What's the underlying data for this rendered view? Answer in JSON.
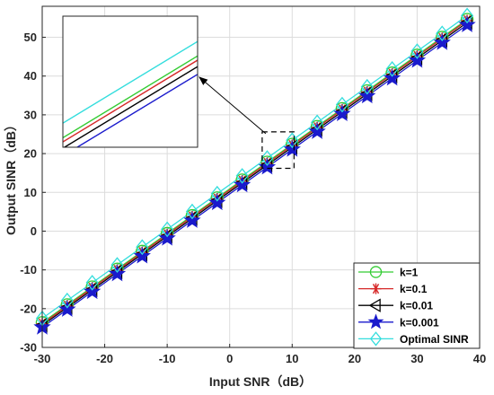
{
  "chart_data": {
    "type": "line",
    "xlabel": "Input SNR（dB）",
    "ylabel": "Output SINR（dB）",
    "xlim": [
      -30,
      40
    ],
    "ylim": [
      -30,
      58
    ],
    "xticks": [
      -30,
      -20,
      -10,
      0,
      10,
      20,
      30,
      40
    ],
    "yticks": [
      -30,
      -20,
      -10,
      0,
      10,
      20,
      30,
      40,
      50
    ],
    "grid": true,
    "legend_position": "bottom-right",
    "marker_x": [
      -30,
      -26,
      -22,
      -18,
      -14,
      -10,
      -6,
      -2,
      2,
      6,
      10,
      14,
      18,
      22,
      26,
      30,
      34,
      38
    ],
    "series": [
      {
        "name": "k=1",
        "color": "#33cc33",
        "marker": "circle",
        "x": [
          -30,
          38
        ],
        "y": [
          -23.6,
          54.6
        ]
      },
      {
        "name": "k=0.1",
        "color": "#d62828",
        "marker": "asterisk",
        "x": [
          -30,
          38
        ],
        "y": [
          -23.9,
          54.3
        ]
      },
      {
        "name": "k=0.01",
        "color": "#000000",
        "marker": "triangle-left",
        "x": [
          -30,
          38
        ],
        "y": [
          -24.3,
          53.8
        ]
      },
      {
        "name": "k=0.001",
        "color": "#1a1acc",
        "marker": "star",
        "x": [
          -30,
          38
        ],
        "y": [
          -24.8,
          53.2
        ]
      },
      {
        "name": "Optimal SINR",
        "color": "#33dddd",
        "marker": "diamond",
        "x": [
          -30,
          38
        ],
        "y": [
          -22.5,
          55.6
        ]
      }
    ],
    "inset": {
      "source_xlim": [
        5.2,
        10.3
      ],
      "source_ylim": [
        16.2,
        25.6
      ],
      "annotation": "arrow from zoom box to inset"
    }
  }
}
